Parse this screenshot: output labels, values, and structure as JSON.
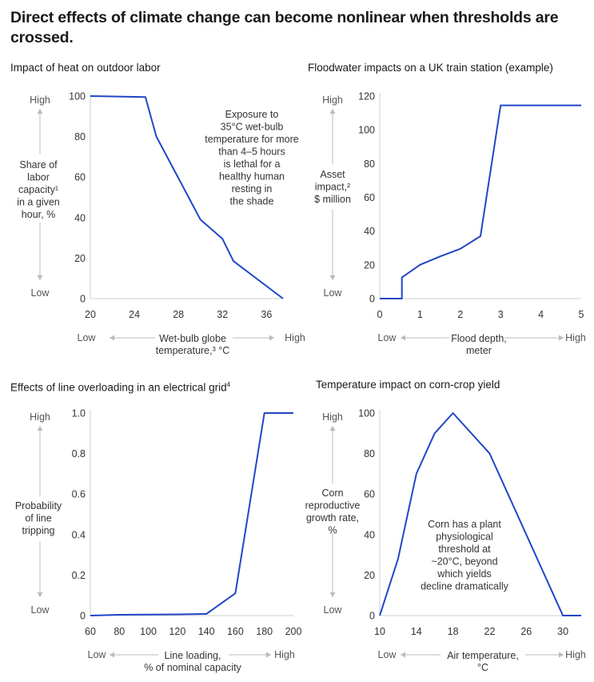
{
  "title": "Direct effects of climate change can become nonlinear when thresholds are crossed.",
  "colors": {
    "series": "#2146c7",
    "arrow": "#bbbbbb",
    "axis": "#cfcfcf"
  },
  "chart_data": [
    {
      "type": "line",
      "title": "Impact of heat on outdoor labor",
      "title_sup": "",
      "ylabel_lines": [
        "Share of",
        "labor",
        "capacity¹",
        "in a given",
        "hour, %"
      ],
      "xlabel_lines": [
        "Wet-bulb globe",
        "temperature,³ °C"
      ],
      "y_low": "Low",
      "y_high": "High",
      "x_low": "Low",
      "x_high": "High",
      "xlim": [
        20,
        38
      ],
      "ylim": [
        0,
        100
      ],
      "xticks": [
        20,
        24,
        28,
        32,
        36
      ],
      "xtick_labels": [
        "20",
        "24",
        "28",
        "32",
        "36"
      ],
      "yticks": [
        0,
        20,
        40,
        60,
        80,
        100
      ],
      "ytick_labels": [
        "0",
        "20",
        "40",
        "60",
        "80",
        "100"
      ],
      "x": [
        20,
        25,
        26,
        30,
        32,
        33,
        37.5
      ],
      "y": [
        100,
        99.5,
        80,
        39,
        29.5,
        18.5,
        0
      ],
      "annotation": [
        "Exposure to",
        "35°C wet-bulb",
        "temperature for more",
        "than 4–5 hours",
        "is lethal for a",
        "healthy human",
        "resting in",
        "the shade"
      ],
      "grid": false
    },
    {
      "type": "line",
      "title": "Floodwater impacts on a UK train station (example)",
      "title_sup": "",
      "ylabel_lines": [
        "Asset",
        "impact,²",
        "$ million"
      ],
      "xlabel_lines": [
        "Flood depth,",
        "meter"
      ],
      "y_low": "Low",
      "y_high": "High",
      "x_low": "Low",
      "x_high": "High",
      "xlim": [
        0,
        5
      ],
      "ylim": [
        0,
        120
      ],
      "xticks": [
        0,
        1,
        2,
        3,
        4,
        5
      ],
      "xtick_labels": [
        "0",
        "1",
        "2",
        "3",
        "4",
        "5"
      ],
      "yticks": [
        0,
        20,
        40,
        60,
        80,
        100,
        120
      ],
      "ytick_labels": [
        "0",
        "20",
        "40",
        "60",
        "80",
        "100",
        "120"
      ],
      "x": [
        0,
        0.55,
        0.55,
        1,
        1.5,
        2,
        2.5,
        3,
        5
      ],
      "y": [
        0,
        0,
        12.5,
        20,
        25,
        29.5,
        37,
        114.5,
        114.5
      ],
      "annotation": [],
      "grid": false
    },
    {
      "type": "line",
      "title": "Effects of line overloading in an electrical grid",
      "title_sup": "4",
      "ylabel_lines": [
        "Probability",
        "of line",
        "tripping"
      ],
      "xlabel_lines": [
        "Line loading,",
        "% of nominal capacity"
      ],
      "y_low": "Low",
      "y_high": "High",
      "x_low": "Low",
      "x_high": "High",
      "xlim": [
        60,
        200
      ],
      "ylim": [
        0,
        1.0
      ],
      "xticks": [
        60,
        80,
        100,
        120,
        140,
        160,
        180,
        200
      ],
      "xtick_labels": [
        "60",
        "80",
        "100",
        "120",
        "140",
        "160",
        "180",
        "200"
      ],
      "yticks": [
        0,
        0.2,
        0.4,
        0.6,
        0.8,
        1.0
      ],
      "ytick_labels": [
        "0",
        "0.2",
        "0.4",
        "0.6",
        "0.8",
        "1.0"
      ],
      "x": [
        60,
        80,
        100,
        120,
        140,
        160,
        180,
        200
      ],
      "y": [
        0,
        0.004,
        0.005,
        0.006,
        0.008,
        0.11,
        1.0,
        1.0
      ],
      "annotation": [],
      "grid": false
    },
    {
      "type": "line",
      "title": "Temperature impact on corn-crop yield",
      "title_sup": "",
      "ylabel_lines": [
        "Corn",
        "reproductive",
        "growth rate,",
        "%"
      ],
      "xlabel_lines": [
        "Air temperature,",
        "°C"
      ],
      "y_low": "Low",
      "y_high": "High",
      "x_low": "Low",
      "x_high": "High",
      "xlim": [
        10,
        32
      ],
      "ylim": [
        0,
        100
      ],
      "xticks": [
        10,
        14,
        18,
        22,
        26,
        30
      ],
      "xtick_labels": [
        "10",
        "14",
        "18",
        "22",
        "26",
        "30"
      ],
      "yticks": [
        0,
        20,
        40,
        60,
        80,
        100
      ],
      "ytick_labels": [
        "0",
        "20",
        "40",
        "60",
        "80",
        "100"
      ],
      "x": [
        10,
        12,
        14,
        16,
        18,
        22,
        30,
        32
      ],
      "y": [
        0,
        28,
        70,
        90,
        100,
        80,
        0,
        0
      ],
      "annotation": [
        "Corn has a plant",
        "physiological",
        "threshold at",
        "~20°C, beyond",
        "which yields",
        "decline dramatically"
      ],
      "grid": false
    }
  ]
}
